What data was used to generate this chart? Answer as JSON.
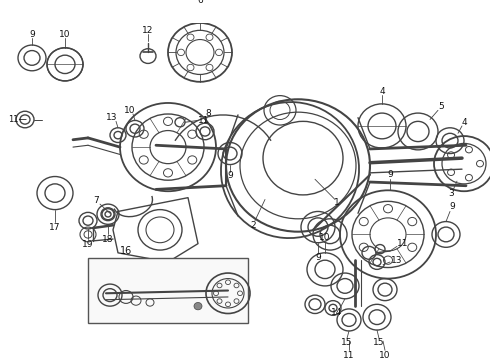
{
  "bg_color": "#ffffff",
  "line_color": "#444444",
  "fig_width": 4.9,
  "fig_height": 3.6,
  "dpi": 100
}
